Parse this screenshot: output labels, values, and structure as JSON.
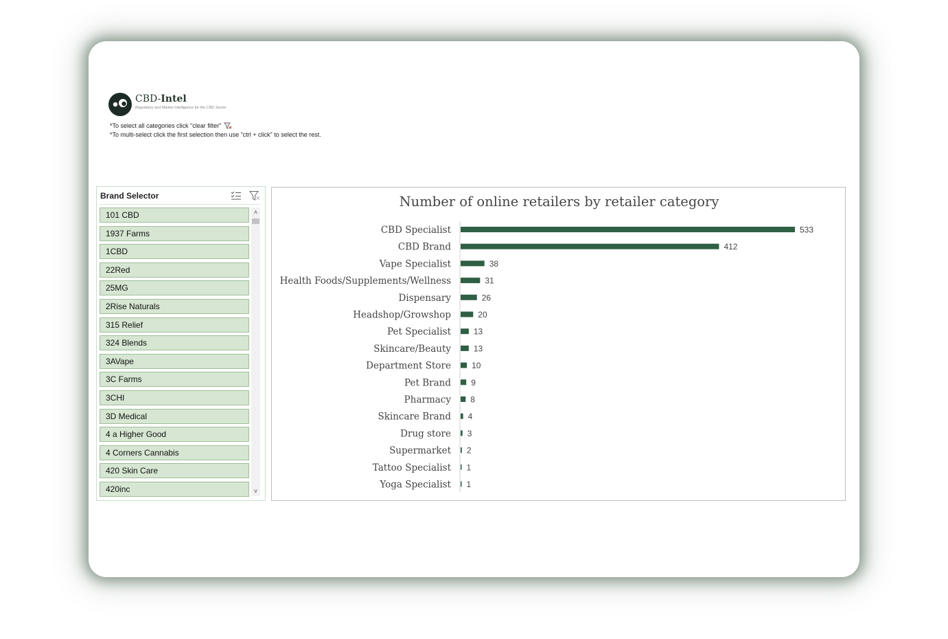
{
  "header": {
    "brand_prefix": "CBD-",
    "brand_bold": "Intel",
    "tagline": "Regulatory and Market Intelligence for the CBD Sector",
    "note_select_all": "*To select all categories click \"clear filter\"",
    "note_multi_select": "*To multi-select click the first selection then use \"ctrl + click\" to select the rest."
  },
  "slicer": {
    "title": "Brand Selector",
    "items": [
      "101 CBD",
      "1937 Farms",
      "1CBD",
      "22Red",
      "25MG",
      "2Rise Naturals",
      "315 Relief",
      "324 Blends",
      "3AVape",
      "3C Farms",
      "3CHI",
      "3D Medical",
      "4 a Higher Good",
      "4 Corners Cannabis",
      "420 Skin Care",
      "420inc"
    ]
  },
  "colors": {
    "bar": "#2f5f45",
    "item_bg": "#d6e6d2"
  },
  "chart_data": {
    "type": "bar",
    "orientation": "horizontal",
    "title": "Number of online retailers by retailer category",
    "categories": [
      "CBD Specialist",
      "CBD Brand",
      "Vape Specialist",
      "Health Foods/Supplements/Wellness",
      "Dispensary",
      "Headshop/Growshop",
      "Pet Specialist",
      "Skincare/Beauty",
      "Department Store",
      "Pet Brand",
      "Pharmacy",
      "Skincare Brand",
      "Drug store",
      "Supermarket",
      "Tattoo Specialist",
      "Yoga Specialist"
    ],
    "values": [
      533,
      412,
      38,
      31,
      26,
      20,
      13,
      13,
      10,
      9,
      8,
      4,
      3,
      2,
      1,
      1
    ],
    "grid": false,
    "legend": "none"
  }
}
